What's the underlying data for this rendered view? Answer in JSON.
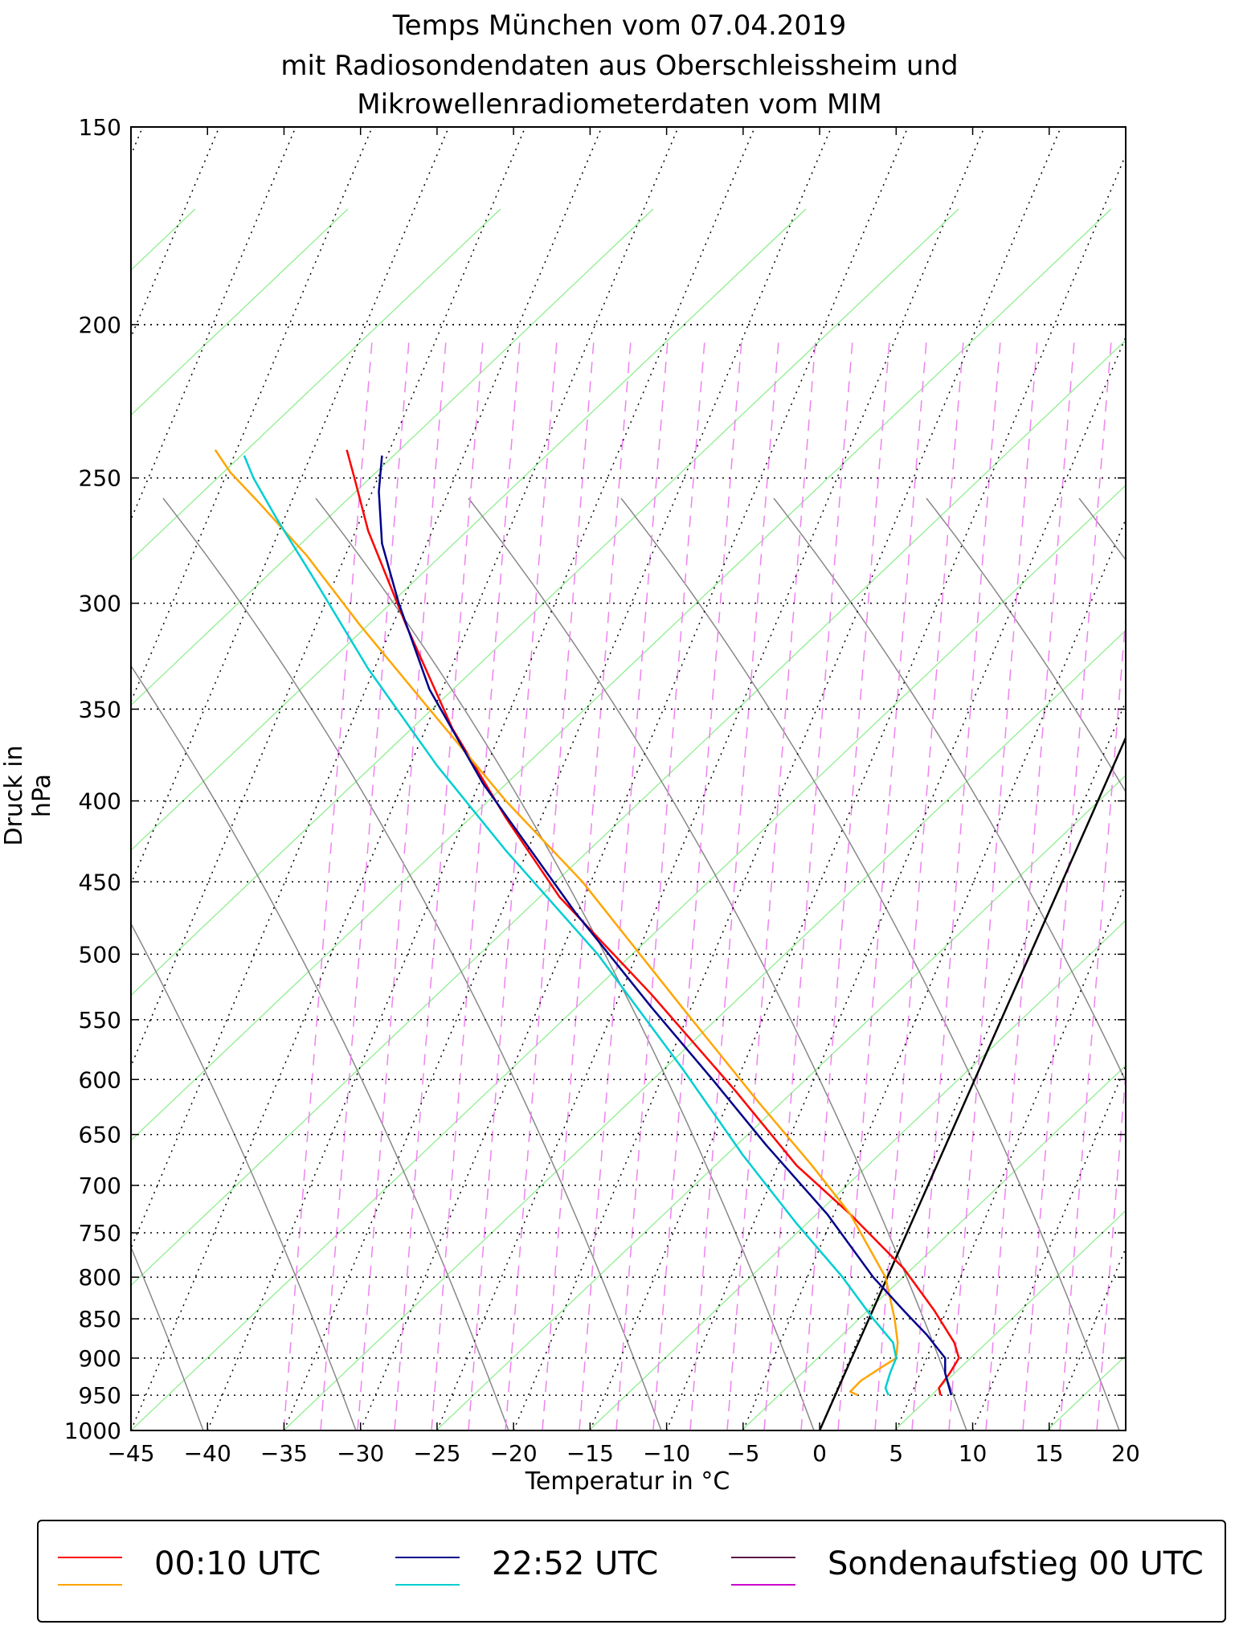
{
  "title": {
    "line1": "Temps München vom 07.04.2019",
    "line2": "mit Radiosondendaten aus Oberschleissheim und",
    "line3": "Mikrowellenradiometerdaten vom MIM"
  },
  "chart_data": {
    "type": "line",
    "title": "Temps München vom 07.04.2019 mit Radiosondendaten aus Oberschleissheim und Mikrowellenradiometerdaten vom MIM",
    "xlabel": "Temperatur in °C",
    "ylabel": "Druck in hPa",
    "xlim": [
      -45,
      20
    ],
    "ylim": [
      1000,
      150
    ],
    "yscale": "log",
    "xticks": [
      -45,
      -40,
      -35,
      -30,
      -25,
      -20,
      -15,
      -10,
      -5,
      0,
      5,
      10,
      15,
      20
    ],
    "xtick_labels": [
      "−45",
      "−40",
      "−35",
      "−30",
      "−25",
      "−20",
      "−15",
      "−10",
      "−5",
      "0",
      "5",
      "10",
      "15",
      "20"
    ],
    "yticks": [
      150,
      200,
      250,
      300,
      350,
      400,
      450,
      500,
      550,
      600,
      650,
      700,
      750,
      800,
      850,
      900,
      950,
      1000
    ],
    "ytick_labels": [
      "150",
      "200",
      "250",
      "300",
      "350",
      "400",
      "450",
      "500",
      "550",
      "600",
      "650",
      "700",
      "750",
      "800",
      "850",
      "900",
      "950",
      "1000"
    ],
    "grid": "dotted horizontal isobars and skewed isotherms",
    "legend_position": "bottom",
    "reference_line": {
      "color": "#000000",
      "points": [
        [
          0,
          1000
        ],
        [
          20,
          365
        ]
      ]
    },
    "series": [
      {
        "name": "00:10 UTC",
        "color": "#ff0000",
        "points": [
          [
            7.9,
            950
          ],
          [
            7.8,
            940
          ],
          [
            8.5,
            920
          ],
          [
            9.1,
            900
          ],
          [
            8.8,
            880
          ],
          [
            7.5,
            840
          ],
          [
            5.5,
            790
          ],
          [
            2.0,
            730
          ],
          [
            -1.5,
            680
          ],
          [
            -5.5,
            610
          ],
          [
            -11.0,
            530
          ],
          [
            -17.0,
            460
          ],
          [
            -20.5,
            410
          ],
          [
            -24.0,
            360
          ],
          [
            -27.0,
            310
          ],
          [
            -29.5,
            270
          ],
          [
            -30.4,
            250
          ],
          [
            -30.9,
            240
          ]
        ]
      },
      {
        "name": "00:10 UTC",
        "color": "#ffa500",
        "points": [
          [
            2.5,
            950
          ],
          [
            2.0,
            945
          ],
          [
            2.7,
            930
          ],
          [
            4.2,
            910
          ],
          [
            5.0,
            900
          ],
          [
            5.1,
            880
          ],
          [
            4.9,
            850
          ],
          [
            4.3,
            800
          ],
          [
            2.0,
            730
          ],
          [
            -0.5,
            680
          ],
          [
            -4.0,
            620
          ],
          [
            -9.0,
            540
          ],
          [
            -15.5,
            450
          ],
          [
            -20.5,
            400
          ],
          [
            -25.5,
            350
          ],
          [
            -30.0,
            310
          ],
          [
            -33.5,
            280
          ],
          [
            -36.5,
            260
          ],
          [
            -38.5,
            248
          ],
          [
            -39.5,
            240
          ]
        ]
      },
      {
        "name": "22:52 UTC",
        "color": "#00008b",
        "points": [
          [
            8.6,
            950
          ],
          [
            8.2,
            920
          ],
          [
            8.2,
            900
          ],
          [
            7.0,
            870
          ],
          [
            5.5,
            840
          ],
          [
            3.5,
            800
          ],
          [
            0.5,
            730
          ],
          [
            -3.5,
            660
          ],
          [
            -7.0,
            600
          ],
          [
            -11.0,
            540
          ],
          [
            -16.0,
            470
          ],
          [
            -22.0,
            390
          ],
          [
            -25.5,
            340
          ],
          [
            -27.5,
            300
          ],
          [
            -28.6,
            275
          ],
          [
            -28.8,
            255
          ],
          [
            -28.6,
            242
          ]
        ]
      },
      {
        "name": "22:52 UTC",
        "color": "#00ced1",
        "points": [
          [
            4.5,
            950
          ],
          [
            4.3,
            940
          ],
          [
            4.6,
            920
          ],
          [
            5.0,
            900
          ],
          [
            4.8,
            880
          ],
          [
            3.5,
            850
          ],
          [
            1.5,
            800
          ],
          [
            -1.5,
            740
          ],
          [
            -5.0,
            670
          ],
          [
            -9.0,
            590
          ],
          [
            -14.5,
            500
          ],
          [
            -20.5,
            430
          ],
          [
            -25.0,
            380
          ],
          [
            -29.5,
            330
          ],
          [
            -33.0,
            290
          ],
          [
            -35.5,
            265
          ],
          [
            -37.0,
            250
          ],
          [
            -37.6,
            242
          ]
        ]
      }
    ],
    "legend": [
      {
        "label": "00:10 UTC",
        "colors": [
          "#ff0000",
          "#ffa500"
        ]
      },
      {
        "label": "22:52 UTC",
        "colors": [
          "#00008b",
          "#00ced1"
        ]
      },
      {
        "label": "Sondenaufstieg 00 UTC",
        "colors": [
          "#5a1a4a",
          "#cc00cc"
        ]
      }
    ]
  }
}
